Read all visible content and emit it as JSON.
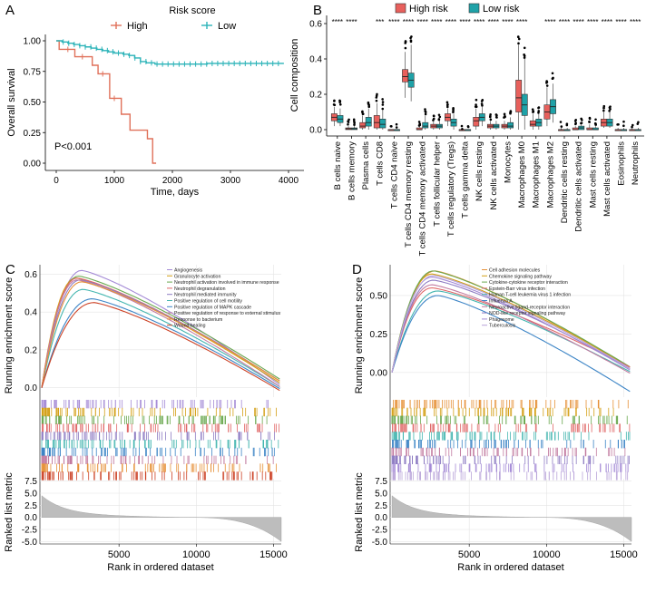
{
  "panels": {
    "A": "A",
    "B": "B",
    "C": "C",
    "D": "D"
  },
  "colors": {
    "high": "#E0715A",
    "low": "#2BB3B8",
    "high_box": "#E8605C",
    "low_box": "#1FA2A8",
    "gray": "#bdbdbd"
  },
  "chart_data": [
    {
      "id": "A",
      "type": "line",
      "title": "",
      "legend_title": "Risk score",
      "legend": [
        "High",
        "Low"
      ],
      "xlabel": "Time, days",
      "ylabel": "Overall survival",
      "xlim": [
        0,
        4000
      ],
      "ylim": [
        0,
        1
      ],
      "xticks": [
        0,
        1000,
        2000,
        3000,
        4000
      ],
      "yticks": [
        0.0,
        0.25,
        0.5,
        0.75,
        1.0
      ],
      "ytick_labels": [
        "0.00",
        "0.25",
        "0.50",
        "0.75",
        "1.00"
      ],
      "annotation": "P<0.001",
      "series": [
        {
          "name": "High",
          "steps": [
            [
              0,
              1.0
            ],
            [
              50,
              0.93
            ],
            [
              300,
              0.93
            ],
            [
              320,
              0.87
            ],
            [
              600,
              0.87
            ],
            [
              620,
              0.8
            ],
            [
              700,
              0.8
            ],
            [
              720,
              0.73
            ],
            [
              900,
              0.73
            ],
            [
              920,
              0.53
            ],
            [
              1100,
              0.53
            ],
            [
              1120,
              0.4
            ],
            [
              1250,
              0.4
            ],
            [
              1270,
              0.27
            ],
            [
              1550,
              0.27
            ],
            [
              1570,
              0.2
            ],
            [
              1640,
              0.2
            ],
            [
              1660,
              0.0
            ],
            [
              1720,
              0.0
            ]
          ]
        },
        {
          "name": "Low",
          "steps": [
            [
              0,
              1.0
            ],
            [
              100,
              0.99
            ],
            [
              200,
              0.98
            ],
            [
              300,
              0.97
            ],
            [
              400,
              0.96
            ],
            [
              500,
              0.95
            ],
            [
              600,
              0.94
            ],
            [
              700,
              0.93
            ],
            [
              800,
              0.92
            ],
            [
              900,
              0.91
            ],
            [
              1000,
              0.9
            ],
            [
              1150,
              0.89
            ],
            [
              1250,
              0.88
            ],
            [
              1350,
              0.86
            ],
            [
              1450,
              0.83
            ],
            [
              1550,
              0.82
            ],
            [
              1700,
              0.81
            ],
            [
              2000,
              0.81
            ],
            [
              2600,
              0.815
            ],
            [
              3000,
              0.815
            ],
            [
              3500,
              0.815
            ],
            [
              3920,
              0.815
            ]
          ]
        }
      ]
    },
    {
      "id": "B",
      "type": "box",
      "ylabel": "Cell composition",
      "ylim": [
        0,
        0.6
      ],
      "yticks": [
        0.0,
        0.2,
        0.4,
        0.6
      ],
      "ytick_labels": [
        "0.0",
        "0.2",
        "0.4",
        "0.6"
      ],
      "legend": [
        "High risk",
        "Low risk"
      ],
      "categories": [
        "B cells naive",
        "B cells memory",
        "Plasma cells",
        "T cells CD8",
        "T cells CD4 naive",
        "T cells CD4 memory resting",
        "T cells CD4 memory activated",
        "T cells follicular helper",
        "T cells regulatory (Tregs)",
        "T cells gamma delta",
        "NK cells resting",
        "NK cells activated",
        "Monocytes",
        "Macrophages M0",
        "Macrophages M1",
        "Macrophages M2",
        "Dendritic cells resting",
        "Dendritic cells activated",
        "Mast cells resting",
        "Mast cells activated",
        "Eosinophils",
        "Neutrophils"
      ],
      "significance": [
        "****",
        "****",
        "",
        "***",
        "****",
        "****",
        "****",
        "****",
        "****",
        "****",
        "****",
        "****",
        "****",
        "****",
        "",
        "****",
        "****",
        "****",
        "****",
        "****",
        "****",
        "****"
      ],
      "series": [
        {
          "name": "High risk",
          "boxes": [
            [
              0.02,
              0.05,
              0.07,
              0.09,
              0.13
            ],
            [
              0,
              0,
              0.005,
              0.01,
              0.02
            ],
            [
              0.0,
              0.01,
              0.02,
              0.04,
              0.08
            ],
            [
              0,
              0.01,
              0.04,
              0.08,
              0.15
            ],
            [
              0,
              0,
              0,
              0,
              0
            ],
            [
              0.18,
              0.27,
              0.3,
              0.34,
              0.44
            ],
            [
              0,
              0,
              0,
              0.01,
              0.02
            ],
            [
              0,
              0.01,
              0.02,
              0.03,
              0.05
            ],
            [
              0.02,
              0.05,
              0.07,
              0.09,
              0.12
            ],
            [
              0,
              0,
              0,
              0,
              0
            ],
            [
              0,
              0.02,
              0.05,
              0.07,
              0.12
            ],
            [
              0,
              0.01,
              0.02,
              0.03,
              0.05
            ],
            [
              0,
              0.01,
              0.02,
              0.03,
              0.05
            ],
            [
              0,
              0.1,
              0.18,
              0.28,
              0.48
            ],
            [
              0,
              0.02,
              0.03,
              0.05,
              0.09
            ],
            [
              0.02,
              0.06,
              0.1,
              0.14,
              0.24
            ],
            [
              0,
              0,
              0,
              0,
              0.01
            ],
            [
              0,
              0,
              0,
              0.01,
              0.02
            ],
            [
              0,
              0,
              0,
              0.01,
              0.03
            ],
            [
              0.01,
              0.02,
              0.04,
              0.06,
              0.1
            ],
            [
              0,
              0,
              0,
              0,
              0.01
            ],
            [
              0,
              0,
              0,
              0,
              0.01
            ]
          ]
        },
        {
          "name": "Low risk",
          "boxes": [
            [
              0.02,
              0.04,
              0.06,
              0.08,
              0.12
            ],
            [
              0,
              0,
              0.005,
              0.01,
              0.02
            ],
            [
              0,
              0.02,
              0.04,
              0.07,
              0.12
            ],
            [
              0,
              0.01,
              0.03,
              0.06,
              0.11
            ],
            [
              0,
              0,
              0,
              0,
              0
            ],
            [
              0.16,
              0.24,
              0.28,
              0.32,
              0.48
            ],
            [
              0,
              0.01,
              0.02,
              0.04,
              0.08
            ],
            [
              0,
              0.01,
              0.02,
              0.03,
              0.05
            ],
            [
              0,
              0.02,
              0.04,
              0.06,
              0.09
            ],
            [
              0,
              0,
              0,
              0,
              0
            ],
            [
              0.02,
              0.05,
              0.07,
              0.09,
              0.13
            ],
            [
              0,
              0.01,
              0.02,
              0.03,
              0.05
            ],
            [
              0,
              0.01,
              0.02,
              0.04,
              0.07
            ],
            [
              0,
              0.08,
              0.14,
              0.2,
              0.4
            ],
            [
              0,
              0.02,
              0.04,
              0.06,
              0.09
            ],
            [
              0.04,
              0.09,
              0.13,
              0.17,
              0.26
            ],
            [
              0,
              0,
              0,
              0,
              0.01
            ],
            [
              0,
              0,
              0.01,
              0.02,
              0.03
            ],
            [
              0,
              0,
              0,
              0.01,
              0.02
            ],
            [
              0.01,
              0.02,
              0.04,
              0.06,
              0.1
            ],
            [
              0,
              0,
              0,
              0,
              0.01
            ],
            [
              0,
              0,
              0,
              0,
              0.01
            ]
          ]
        }
      ]
    },
    {
      "id": "C",
      "type": "line",
      "ylabel_top": "Running enrichment score",
      "ylabel_bottom": "Ranked list metric",
      "xlabel": "Rank in ordered dataset",
      "xlim": [
        0,
        15500
      ],
      "es_ylim": [
        -0.05,
        0.65
      ],
      "es_yticks": [
        0.0,
        0.2,
        0.4,
        0.6
      ],
      "es_ytick_labels": [
        "0.0",
        "0.2",
        "0.4",
        "0.6"
      ],
      "metric_ylim": [
        -5.5,
        8
      ],
      "metric_yticks": [
        7.5,
        5.0,
        2.5,
        0.0,
        -2.5,
        -5.0
      ],
      "metric_ytick_labels": [
        "7.5",
        "5.0",
        "2.5",
        "0.0",
        "-2.5",
        "-5.0"
      ],
      "xticks": [
        5000,
        10000,
        15000
      ],
      "series": [
        {
          "name": "Angiogenesis",
          "color": "#a48ad6",
          "peak": 0.62,
          "peak_at": 2600,
          "end": 0.01
        },
        {
          "name": "Granulocyte activation",
          "color": "#d4a017",
          "peak": 0.58,
          "peak_at": 2200,
          "end": 0.02
        },
        {
          "name": "Neutrophil activation involved in immune response",
          "color": "#6aa84f",
          "peak": 0.59,
          "peak_at": 2400,
          "end": 0.04
        },
        {
          "name": "Neutrophil degranulation",
          "color": "#e06666",
          "peak": 0.58,
          "peak_at": 2300,
          "end": 0.03
        },
        {
          "name": "Neutrophil mediated immunity",
          "color": "#8e7cc3",
          "peak": 0.57,
          "peak_at": 2500,
          "end": 0.03
        },
        {
          "name": "Positive regulation of cell motility",
          "color": "#45b6b0",
          "peak": 0.52,
          "peak_at": 2700,
          "end": 0.0
        },
        {
          "name": "Positive regulation of MAPK cascade",
          "color": "#3d85c6",
          "peak": 0.47,
          "peak_at": 3300,
          "end": -0.01
        },
        {
          "name": "Positive regulation of response to external stimulus",
          "color": "#c27ba0",
          "peak": 0.57,
          "peak_at": 2300,
          "end": 0.0
        },
        {
          "name": "Response to bacterium",
          "color": "#e69138",
          "peak": 0.56,
          "peak_at": 2600,
          "end": 0.03
        },
        {
          "name": "Wound healing",
          "color": "#cc4125",
          "peak": 0.45,
          "peak_at": 3400,
          "end": -0.02
        }
      ]
    },
    {
      "id": "D",
      "type": "line",
      "ylabel_top": "Running enrichment score",
      "ylabel_bottom": "Ranked list metric",
      "xlabel": "Rank in ordered dataset",
      "xlim": [
        0,
        15500
      ],
      "es_ylim": [
        -0.16,
        0.7
      ],
      "es_yticks": [
        0.0,
        0.25,
        0.5
      ],
      "es_ytick_labels": [
        "0.00",
        "0.25",
        "0.50"
      ],
      "metric_ylim": [
        -5.5,
        8
      ],
      "metric_yticks": [
        7.5,
        5.0,
        2.5,
        0.0,
        -2.5,
        -5.0
      ],
      "metric_ytick_labels": [
        "7.5",
        "5.0",
        "2.5",
        "0.0",
        "-2.5",
        "-5.0"
      ],
      "xticks": [
        5000,
        10000,
        15000
      ],
      "series": [
        {
          "name": "Cell adhesion molecules",
          "color": "#e69138",
          "peak": 0.66,
          "peak_at": 2800,
          "end": 0.02
        },
        {
          "name": "Chemokine signaling pathway",
          "color": "#d4a017",
          "peak": 0.64,
          "peak_at": 2600,
          "end": 0.03
        },
        {
          "name": "Cytokine-cytokine receptor interaction",
          "color": "#6aa84f",
          "peak": 0.66,
          "peak_at": 2700,
          "end": 0.03
        },
        {
          "name": "Epstein-Barr virus infection",
          "color": "#e06666",
          "peak": 0.55,
          "peak_at": 2600,
          "end": 0.03
        },
        {
          "name": "Human T-cell leukemia virus 1 infection",
          "color": "#45b6b0",
          "peak": 0.53,
          "peak_at": 3000,
          "end": 0.0
        },
        {
          "name": "Influenza A",
          "color": "#3d85c6",
          "peak": 0.5,
          "peak_at": 3000,
          "end": -0.13
        },
        {
          "name": "Neuroactive ligand-receptor interaction",
          "color": "#c27ba0",
          "peak": 0.57,
          "peak_at": 2600,
          "end": -0.01
        },
        {
          "name": "NOD-like receptor signaling pathway",
          "color": "#8e7cc3",
          "peak": 0.6,
          "peak_at": 2700,
          "end": 0.02
        },
        {
          "name": "Phagosome",
          "color": "#a48ad6",
          "peak": 0.62,
          "peak_at": 2600,
          "end": 0.01
        },
        {
          "name": "Tuberculosis",
          "color": "#b9a4d9",
          "peak": 0.63,
          "peak_at": 2700,
          "end": 0.02
        }
      ]
    }
  ]
}
